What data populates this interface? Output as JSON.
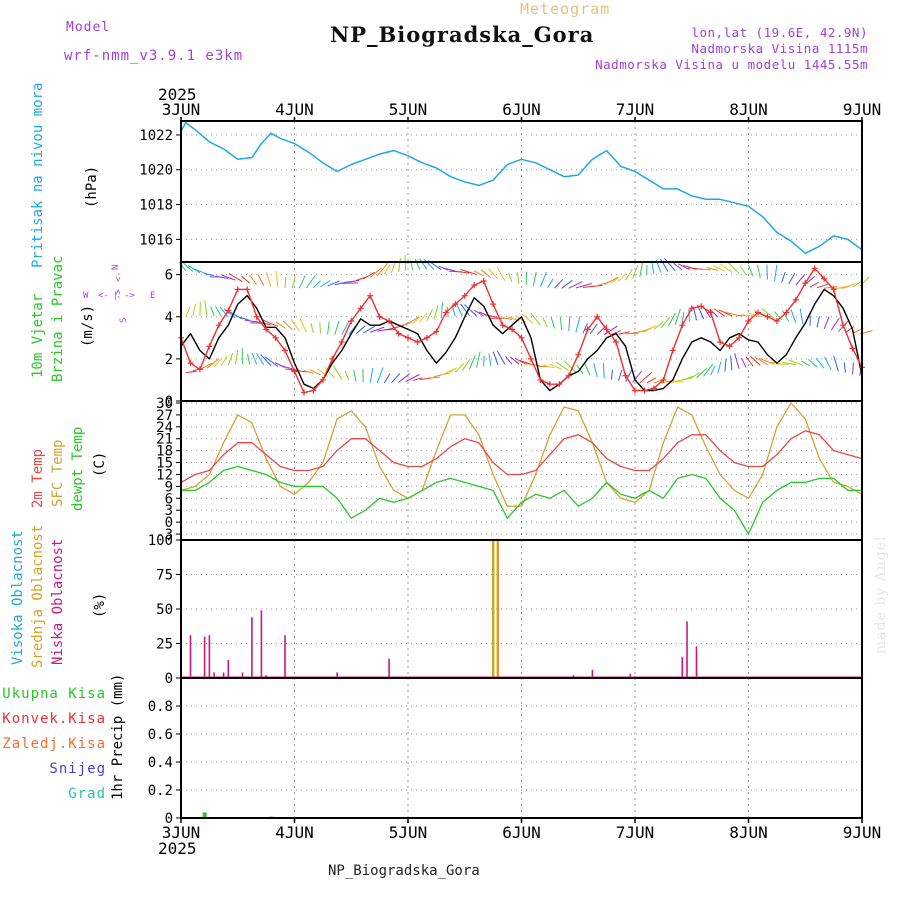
{
  "header": {
    "model_label": "Model",
    "model_name": "wrf-nmm_v3.9.1 e3km",
    "product": "Meteogram",
    "station": "NP_Biogradska_Gora",
    "lonlat": "lon,lat (19.6E, 42.9N)",
    "elevation": "Nadmorska Visina 1115m",
    "model_elevation": "Nadmorska Visina u modelu 1445.55m",
    "year_top": "2025",
    "year_bottom": "2025",
    "credit": "made by Angel",
    "footer_station": "NP_Biogradska_Gora"
  },
  "colors": {
    "pressure": "#1ea8e8",
    "wind_speed": "#000000",
    "wind_gust": "#ee3030",
    "temp_2m": "#e84848",
    "sfc_temp": "#d8a038",
    "dewpoint": "#28c828",
    "cloud_high": "#20a8d8",
    "cloud_mid": "#d8a020",
    "cloud_low": "#c81880",
    "precip_total": "#28c828",
    "purple": "#a040d8"
  },
  "labels": {
    "p1": {
      "a": "Pritisak na nivou mora",
      "b": "(hPa)"
    },
    "p2": {
      "a": "10m Vjetar",
      "b": "Brzina i Pravac",
      "c": "(m/s)",
      "n": "N",
      "s": "S",
      "w": "W",
      "e": "E"
    },
    "p3": {
      "a": "2m Temp",
      "b": "SFC Temp",
      "c": "dewpt Temp",
      "d": "(C)"
    },
    "p4": {
      "a": "Visoka Oblacnost",
      "b": "Srednja Oblacnost",
      "c": "Niska Oblacnost",
      "d": "(%)"
    },
    "p5": {
      "a": "Ukupna Kisa",
      "b": "Konvek.Kisa",
      "c": "Zaledj.Kisa",
      "d": "Snijeg",
      "e": "Grad",
      "f": "1hr Precip (mm)"
    }
  },
  "chart_data": [
    {
      "type": "line",
      "name": "sea-level-pressure",
      "ylabel": "Pritisak na nivou mora (hPa)",
      "categories": [
        "3JUN",
        "4JUN",
        "5JUN",
        "6JUN",
        "7JUN",
        "8JUN",
        "9JUN"
      ],
      "x_range_hours": [
        0,
        144
      ],
      "ylim": [
        1014.7,
        1022.8
      ],
      "yticks": [
        1016,
        1018,
        1020,
        1022
      ],
      "series": [
        {
          "name": "pressure",
          "x": [
            0,
            1,
            3,
            6,
            9,
            12,
            15,
            17,
            19,
            21,
            24,
            27,
            30,
            33,
            36,
            39,
            42,
            45,
            48,
            51,
            54,
            57,
            60,
            63,
            66,
            69,
            72,
            75,
            78,
            81,
            84,
            87,
            90,
            93,
            96,
            99,
            102,
            105,
            108,
            111,
            114,
            117,
            120,
            123,
            126,
            129,
            132,
            135,
            138,
            141,
            144
          ],
          "y": [
            1022.2,
            1022.7,
            1022.3,
            1021.6,
            1021.2,
            1020.6,
            1020.7,
            1021.5,
            1022.1,
            1021.8,
            1021.5,
            1021.0,
            1020.4,
            1019.9,
            1020.3,
            1020.6,
            1020.9,
            1021.1,
            1020.8,
            1020.4,
            1020.1,
            1019.6,
            1019.3,
            1019.1,
            1019.4,
            1020.3,
            1020.6,
            1020.4,
            1020.0,
            1019.6,
            1019.7,
            1020.6,
            1021.1,
            1020.2,
            1019.9,
            1019.4,
            1018.9,
            1018.9,
            1018.5,
            1018.3,
            1018.3,
            1018.1,
            1017.9,
            1017.3,
            1016.4,
            1015.9,
            1015.2,
            1015.6,
            1016.2,
            1016.0,
            1015.4
          ]
        }
      ]
    },
    {
      "type": "line",
      "name": "wind-10m",
      "ylabel": "10m Vjetar Brzina i Pravac (m/s)",
      "categories": [
        "3JUN",
        "4JUN",
        "5JUN",
        "6JUN",
        "7JUN",
        "8JUN",
        "9JUN"
      ],
      "ylim": [
        0,
        6.6
      ],
      "yticks": [
        0,
        2,
        4,
        6
      ],
      "series": [
        {
          "name": "wind speed",
          "x": [
            0,
            2,
            4,
            6,
            8,
            10,
            12,
            14,
            16,
            18,
            20,
            22,
            24,
            26,
            28,
            30,
            32,
            34,
            36,
            38,
            40,
            42,
            44,
            46,
            48,
            50,
            52,
            54,
            56,
            58,
            60,
            62,
            64,
            66,
            68,
            70,
            72,
            74,
            76,
            78,
            80,
            82,
            84,
            86,
            88,
            90,
            92,
            94,
            96,
            98,
            100,
            102,
            104,
            106,
            108,
            110,
            112,
            114,
            116,
            118,
            120,
            122,
            124,
            126,
            128,
            130,
            132,
            134,
            136,
            138,
            140,
            142,
            144
          ],
          "y": [
            2.6,
            3.2,
            2.4,
            2.0,
            3.0,
            3.6,
            4.6,
            5.0,
            4.4,
            3.5,
            3.5,
            3.0,
            1.8,
            0.8,
            0.6,
            1.0,
            1.8,
            2.4,
            3.2,
            3.9,
            3.6,
            3.6,
            3.8,
            3.6,
            3.4,
            3.2,
            2.4,
            1.8,
            2.3,
            3.0,
            4.0,
            4.9,
            4.5,
            3.6,
            3.2,
            3.6,
            4.0,
            3.0,
            1.0,
            0.5,
            0.8,
            1.2,
            1.4,
            2.0,
            2.4,
            3.0,
            3.2,
            2.6,
            1.0,
            0.5,
            0.5,
            0.6,
            1.0,
            2.0,
            2.8,
            3.0,
            2.8,
            2.4,
            3.0,
            3.2,
            2.9,
            2.8,
            2.2,
            1.8,
            2.2,
            3.0,
            3.7,
            4.6,
            5.3,
            5.0,
            4.4,
            3.4,
            1.2
          ]
        },
        {
          "name": "wind gust",
          "x": [
            0,
            2,
            4,
            6,
            8,
            10,
            12,
            14,
            16,
            18,
            20,
            22,
            24,
            26,
            28,
            30,
            32,
            34,
            36,
            38,
            40,
            42,
            44,
            46,
            48,
            50,
            52,
            54,
            56,
            58,
            60,
            62,
            64,
            66,
            68,
            70,
            72,
            74,
            76,
            78,
            80,
            82,
            84,
            86,
            88,
            90,
            92,
            94,
            96,
            98,
            100,
            102,
            104,
            106,
            108,
            110,
            112,
            114,
            116,
            118,
            120,
            122,
            124,
            126,
            128,
            130,
            132,
            134,
            136,
            138,
            140,
            142,
            144
          ],
          "y": [
            3.0,
            1.8,
            1.5,
            2.6,
            3.6,
            4.3,
            5.3,
            5.3,
            4.0,
            3.4,
            3.0,
            2.4,
            1.4,
            0.4,
            0.5,
            1.0,
            2.0,
            2.8,
            3.8,
            4.4,
            5.0,
            4.0,
            3.8,
            3.2,
            3.0,
            2.8,
            3.0,
            3.3,
            4.2,
            4.6,
            5.0,
            5.5,
            5.7,
            4.6,
            3.6,
            3.4,
            3.0,
            2.0,
            1.0,
            0.8,
            0.8,
            1.2,
            2.2,
            3.4,
            4.0,
            3.4,
            2.8,
            1.2,
            0.5,
            0.5,
            0.6,
            1.0,
            2.4,
            3.6,
            4.4,
            4.5,
            4.2,
            2.8,
            2.6,
            3.0,
            3.8,
            4.2,
            4.0,
            3.8,
            4.2,
            4.8,
            5.6,
            6.3,
            5.8,
            5.3,
            3.6,
            2.5,
            1.6
          ]
        }
      ]
    },
    {
      "type": "line",
      "name": "temperature",
      "ylabel": "2m Temp / SFC Temp / dewpt Temp (C)",
      "categories": [
        "3JUN",
        "4JUN",
        "5JUN",
        "6JUN",
        "7JUN",
        "8JUN",
        "9JUN"
      ],
      "ylim": [
        -4.5,
        30.5
      ],
      "yticks": [
        -3,
        0,
        3,
        6,
        9,
        12,
        15,
        18,
        21,
        24,
        27,
        30
      ],
      "series": [
        {
          "name": "2m Temp",
          "x": [
            0,
            3,
            6,
            9,
            12,
            15,
            18,
            21,
            24,
            27,
            30,
            33,
            36,
            39,
            42,
            45,
            48,
            51,
            54,
            57,
            60,
            63,
            66,
            69,
            72,
            75,
            78,
            81,
            84,
            87,
            90,
            93,
            96,
            99,
            102,
            105,
            108,
            111,
            114,
            117,
            120,
            123,
            126,
            129,
            132,
            135,
            138,
            141,
            144
          ],
          "y": [
            10,
            12,
            13,
            17,
            20,
            20,
            17,
            14,
            13,
            13,
            14,
            18,
            21,
            21,
            18,
            15,
            14,
            14,
            16,
            19,
            21,
            20,
            15,
            12,
            12,
            13,
            17,
            21,
            22,
            20,
            16,
            14,
            13,
            13,
            16,
            20,
            22,
            22,
            18,
            15,
            14,
            14,
            17,
            21,
            23,
            22,
            18,
            17,
            16
          ]
        },
        {
          "name": "SFC Temp",
          "x": [
            0,
            3,
            6,
            9,
            12,
            15,
            18,
            21,
            24,
            27,
            30,
            33,
            36,
            39,
            42,
            45,
            48,
            51,
            54,
            57,
            60,
            63,
            66,
            69,
            72,
            75,
            78,
            81,
            84,
            87,
            90,
            93,
            96,
            99,
            102,
            105,
            108,
            111,
            114,
            117,
            120,
            123,
            126,
            129,
            132,
            135,
            138,
            141,
            144
          ],
          "y": [
            8,
            9,
            12,
            20,
            27,
            25,
            16,
            9,
            7,
            10,
            15,
            26,
            28,
            24,
            14,
            8,
            6,
            8,
            18,
            27,
            27,
            22,
            12,
            4,
            4,
            12,
            22,
            29,
            28,
            20,
            10,
            6,
            5,
            8,
            20,
            29,
            27,
            19,
            12,
            8,
            6,
            12,
            24,
            30,
            26,
            16,
            10,
            9,
            7
          ]
        },
        {
          "name": "dewpt Temp",
          "x": [
            0,
            3,
            6,
            9,
            12,
            15,
            18,
            21,
            24,
            27,
            30,
            33,
            36,
            39,
            42,
            45,
            48,
            51,
            54,
            57,
            60,
            63,
            66,
            69,
            72,
            75,
            78,
            81,
            84,
            87,
            90,
            93,
            96,
            99,
            102,
            105,
            108,
            111,
            114,
            117,
            120,
            123,
            126,
            129,
            132,
            135,
            138,
            141,
            144
          ],
          "y": [
            8,
            8,
            10,
            13,
            14,
            13,
            12,
            10,
            9,
            9,
            9,
            6,
            1,
            3,
            6,
            5,
            6,
            8,
            10,
            11,
            10,
            9,
            8,
            1,
            5,
            7,
            6,
            8,
            4,
            6,
            10,
            7,
            6,
            8,
            6,
            11,
            12,
            11,
            6,
            3,
            -3,
            5,
            8,
            10,
            10,
            11,
            11,
            8,
            8
          ]
        }
      ]
    },
    {
      "type": "bar",
      "name": "cloud-cover",
      "ylabel": "Visoka / Srednja / Niska Oblacnost (%)",
      "categories": [
        "3JUN",
        "4JUN",
        "5JUN",
        "6JUN",
        "7JUN",
        "8JUN",
        "9JUN"
      ],
      "ylim": [
        0,
        100
      ],
      "yticks": [
        0,
        25,
        50,
        75,
        100
      ],
      "series": [
        {
          "name": "Niska Oblacnost",
          "x": [
            2,
            5,
            6,
            7,
            9,
            10,
            13,
            15,
            17,
            18,
            22,
            33,
            44,
            83,
            87,
            95,
            106,
            107,
            109
          ],
          "values": [
            31,
            30,
            31,
            4,
            4,
            13,
            4,
            44,
            49,
            2,
            31,
            4,
            14,
            2,
            6,
            3,
            15,
            41,
            23
          ]
        },
        {
          "name": "Srednja Oblacnost",
          "x": [
            66,
            67
          ],
          "values": [
            100,
            100
          ]
        },
        {
          "name": "Visoka Oblacnost",
          "x": [],
          "values": []
        }
      ]
    },
    {
      "type": "bar",
      "name": "precipitation",
      "ylabel": "1hr Precip (mm)",
      "categories": [
        "3JUN",
        "4JUN",
        "5JUN",
        "6JUN",
        "7JUN",
        "8JUN",
        "9JUN"
      ],
      "ylim": [
        0,
        1.0
      ],
      "yticks": [
        0,
        0.2,
        0.4,
        0.6,
        0.8
      ],
      "series": [
        {
          "name": "Ukupna Kisa",
          "x": [
            5,
            19
          ],
          "values": [
            0.04,
            0.01
          ]
        }
      ]
    }
  ]
}
